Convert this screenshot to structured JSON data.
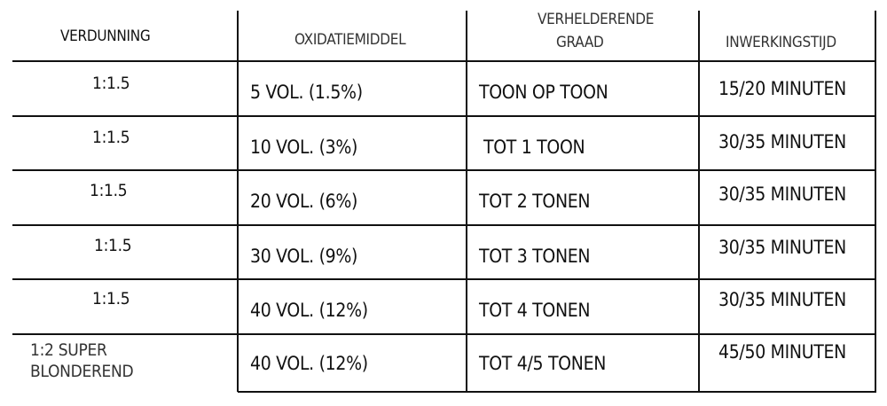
{
  "table": {
    "headers": {
      "dilution": "VERDUNNING",
      "oxidizer": "OXIDATIEMIDDEL",
      "lift_line1": "VERHELDERENDE",
      "lift_line2": "GRAAD",
      "time": "INWERKINGSTIJD"
    },
    "rows": [
      {
        "dilution": "1:1.5",
        "oxidizer": "5 VOL. (1.5%)",
        "lift": "TOON OP TOON",
        "time": "15/20 MINUTEN"
      },
      {
        "dilution": "1:1.5",
        "oxidizer": "10 VOL. (3%)",
        "lift": "TOT 1 TOON",
        "time": "30/35 MINUTEN"
      },
      {
        "dilution": "1:1.5",
        "oxidizer": "20 VOL. (6%)",
        "lift": "TOT 2 TONEN",
        "time": "30/35 MINUTEN"
      },
      {
        "dilution": "1:1.5",
        "oxidizer": "30 VOL. (9%)",
        "lift": "TOT 3 TONEN",
        "time": "30/35 MINUTEN"
      },
      {
        "dilution": "1:1.5",
        "oxidizer": "40 VOL. (12%)",
        "lift": "TOT 4 TONEN",
        "time": "30/35 MINUTEN"
      },
      {
        "dilution_line1": "1:2 SUPER",
        "dilution_line2": "BLONDEREND",
        "oxidizer": "40 VOL. (12%)",
        "lift": "TOT 4/5 TONEN",
        "time": "45/50 MINUTEN"
      }
    ]
  }
}
